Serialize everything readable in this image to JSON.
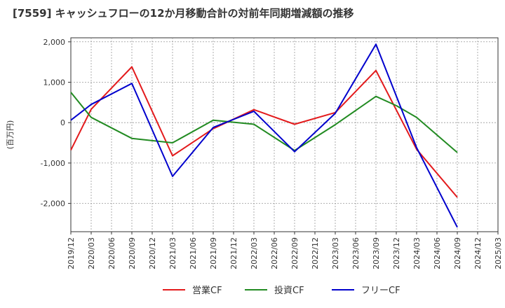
{
  "chart_data": {
    "type": "line",
    "title": "[7559]  キャッシュフローの12か月移動合計の対前年同期増減額の推移",
    "ylabel": "(百万円)",
    "xlabel": "",
    "ylim": [
      -2700,
      2100
    ],
    "yticks": [
      2000,
      1000,
      0,
      -1000,
      -2000
    ],
    "ytick_labels": [
      "2,000",
      "1,000",
      "0",
      "-1,000",
      "-2,000"
    ],
    "x_ticks": [
      "2019/12",
      "2020/03",
      "2020/06",
      "2020/09",
      "2020/12",
      "2021/03",
      "2021/06",
      "2021/09",
      "2021/12",
      "2022/03",
      "2022/06",
      "2022/09",
      "2022/12",
      "2023/03",
      "2023/06",
      "2023/09",
      "2023/12",
      "2024/03",
      "2024/06",
      "2024/09",
      "2024/12",
      "2025/03"
    ],
    "grid": true,
    "legend_position": "bottom",
    "series": [
      {
        "name": "営業CF",
        "color": "#e31a1c",
        "points": [
          [
            "2019/12",
            -680
          ],
          [
            "2020/03",
            330
          ],
          [
            "2020/09",
            1380
          ],
          [
            "2021/03",
            -820
          ],
          [
            "2021/09",
            -150
          ],
          [
            "2022/03",
            320
          ],
          [
            "2022/09",
            -40
          ],
          [
            "2023/03",
            250
          ],
          [
            "2023/09",
            1290
          ],
          [
            "2024/03",
            -660
          ],
          [
            "2024/09",
            -1850
          ]
        ]
      },
      {
        "name": "投資CF",
        "color": "#228b22",
        "points": [
          [
            "2019/12",
            750
          ],
          [
            "2020/03",
            130
          ],
          [
            "2020/09",
            -390
          ],
          [
            "2021/03",
            -500
          ],
          [
            "2021/09",
            60
          ],
          [
            "2022/03",
            -40
          ],
          [
            "2022/09",
            -690
          ],
          [
            "2023/03",
            -50
          ],
          [
            "2023/09",
            650
          ],
          [
            "2023/12",
            420
          ],
          [
            "2024/03",
            130
          ],
          [
            "2024/09",
            -740
          ]
        ]
      },
      {
        "name": "フリーCF",
        "color": "#0000cd",
        "points": [
          [
            "2019/12",
            60
          ],
          [
            "2020/03",
            450
          ],
          [
            "2020/09",
            970
          ],
          [
            "2021/03",
            -1330
          ],
          [
            "2021/09",
            -120
          ],
          [
            "2022/03",
            280
          ],
          [
            "2022/09",
            -720
          ],
          [
            "2023/03",
            230
          ],
          [
            "2023/09",
            1940
          ],
          [
            "2024/03",
            -620
          ],
          [
            "2024/09",
            -2590
          ]
        ]
      }
    ]
  }
}
